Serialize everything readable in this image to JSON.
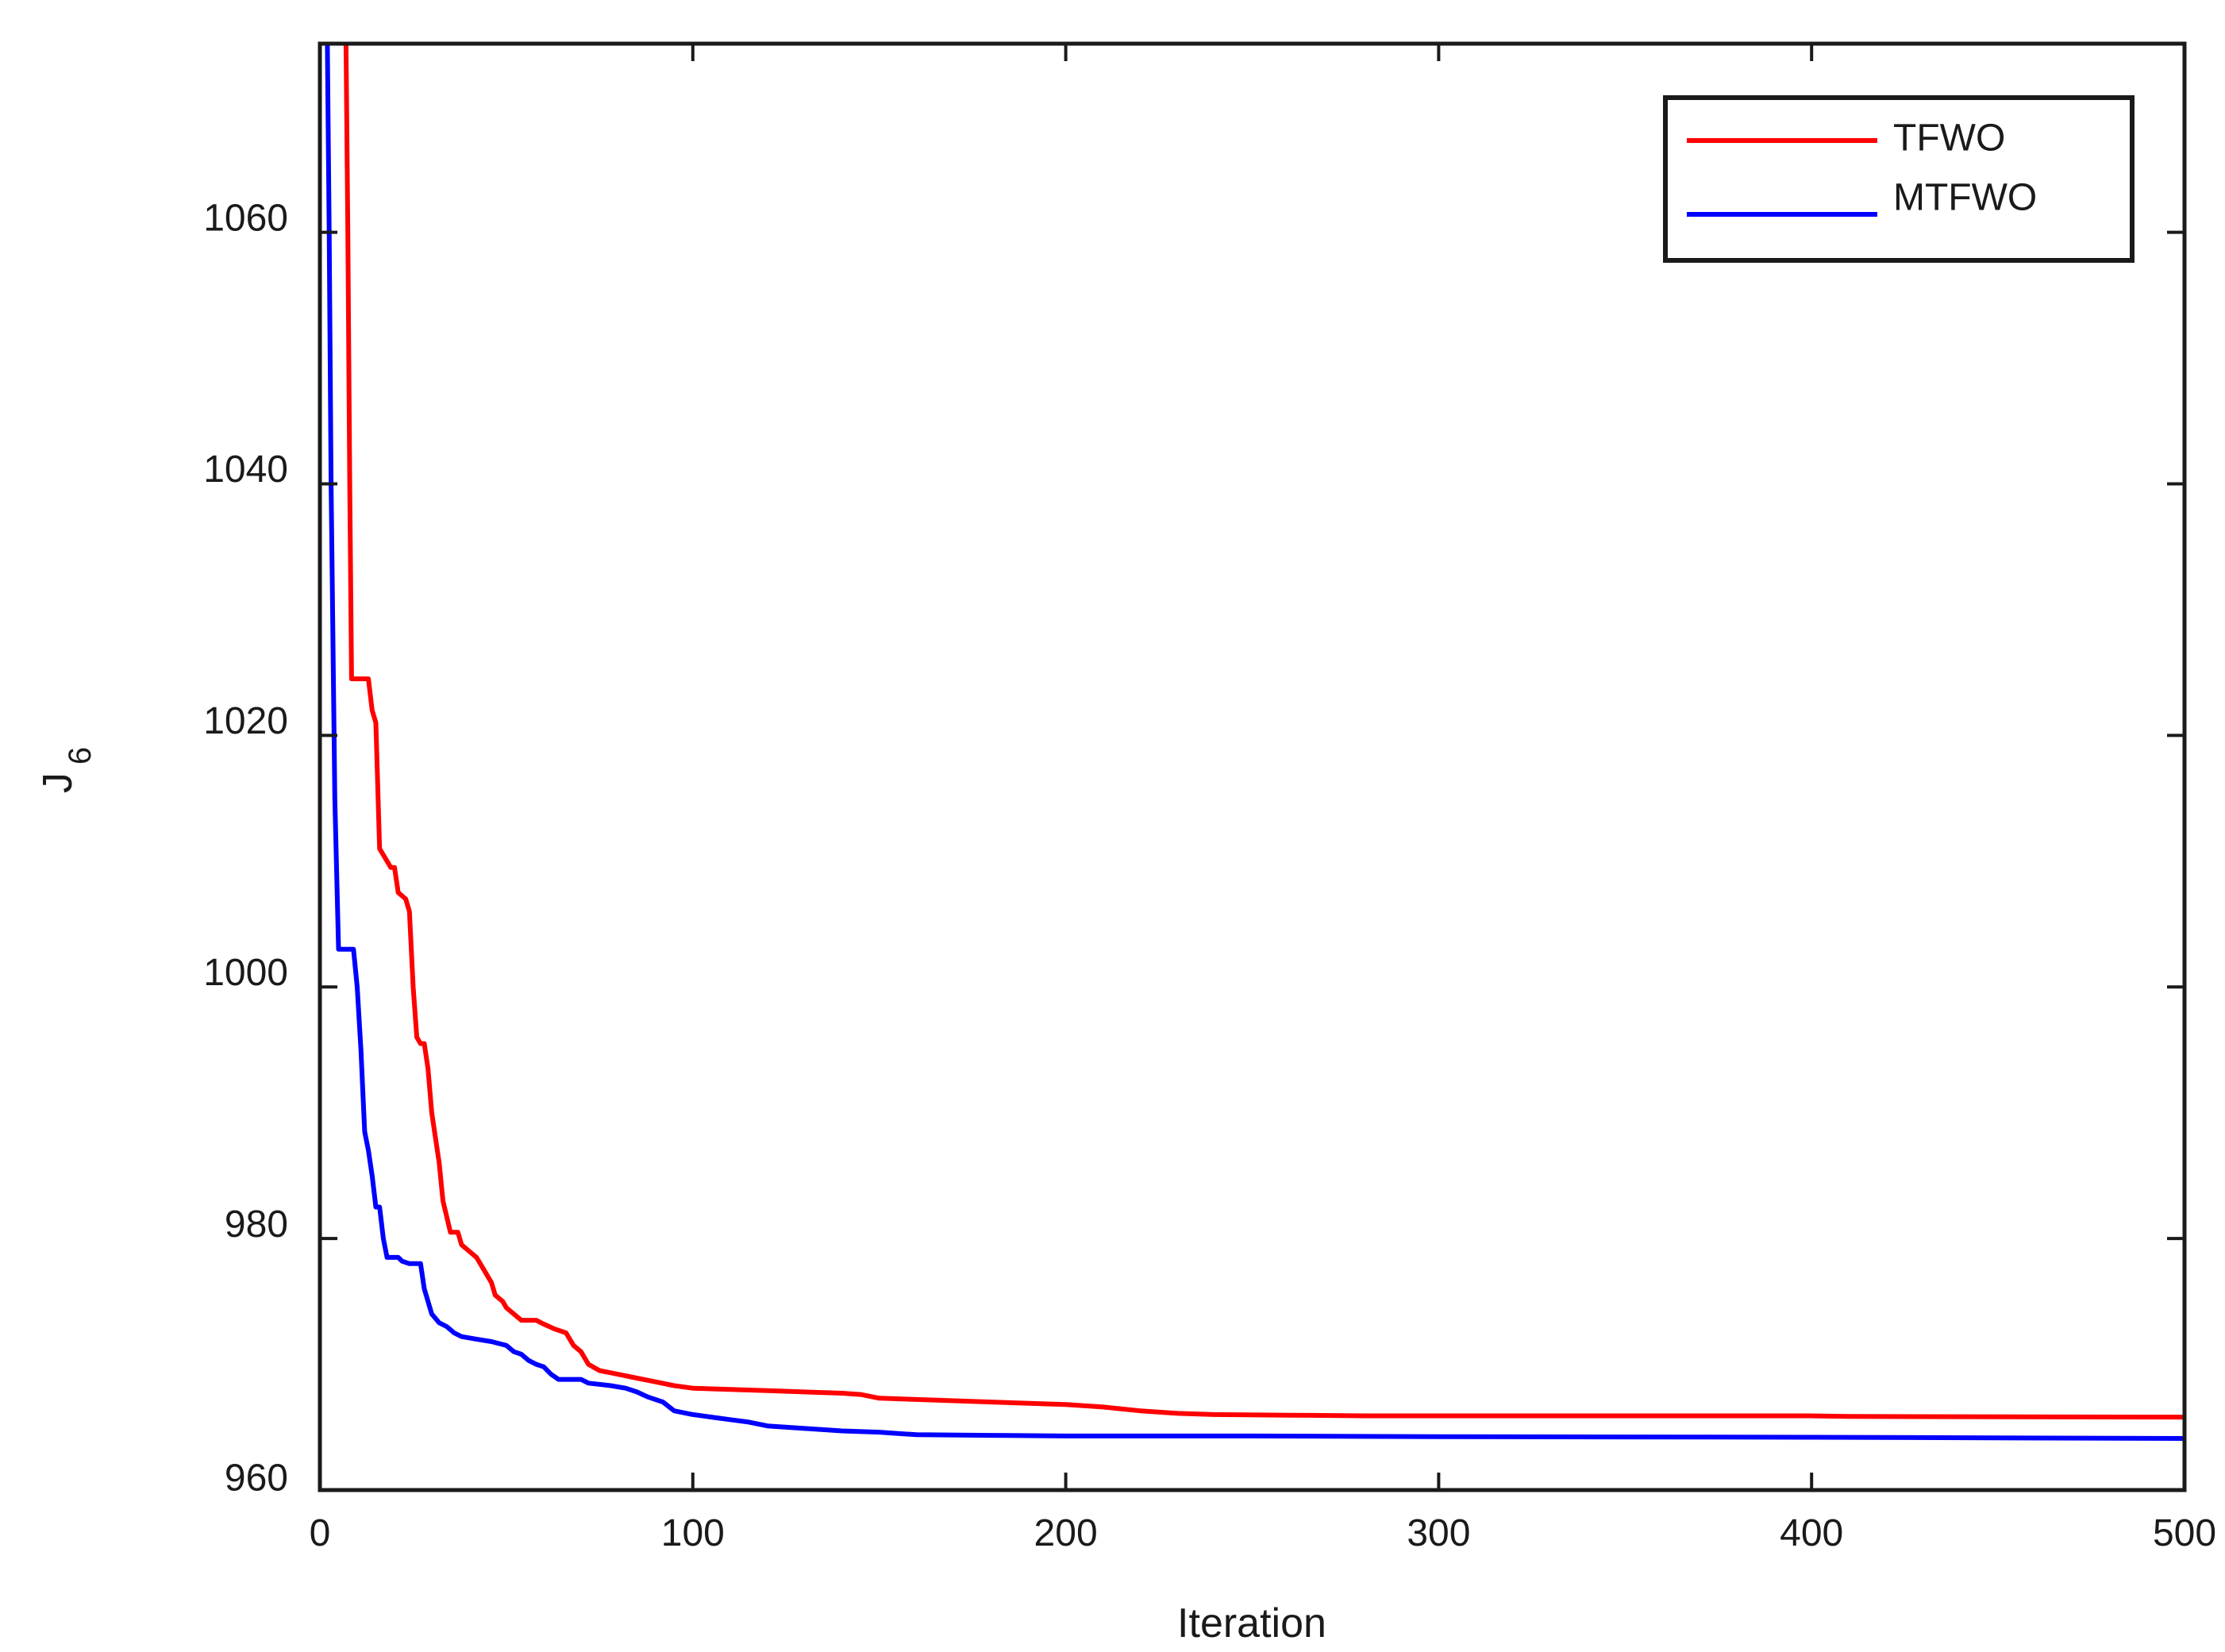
{
  "chart_data": {
    "type": "line",
    "xlabel": "Iteration",
    "ylabel": "J",
    "ylabel_subscript": "6",
    "xlim": [
      0,
      500
    ],
    "ylim": [
      960,
      1075
    ],
    "xticks": [
      0,
      100,
      200,
      300,
      400,
      500
    ],
    "xtick_labels": [
      "0",
      "100",
      "200",
      "300",
      "400",
      "500"
    ],
    "yticks": [
      960,
      980,
      1000,
      1020,
      1040,
      1060
    ],
    "ytick_labels": [
      "960",
      "980",
      "1000",
      "1020",
      "1040",
      "1060"
    ],
    "grid": false,
    "legend_position": "top-right",
    "series": [
      {
        "name": "TFWO",
        "color": "#ff0000",
        "points": [
          [
            7,
            1075
          ],
          [
            7.5,
            1060
          ],
          [
            8,
            1040
          ],
          [
            8.5,
            1024.5
          ],
          [
            13,
            1024.5
          ],
          [
            14,
            1022
          ],
          [
            15,
            1021
          ],
          [
            16,
            1011
          ],
          [
            18,
            1010
          ],
          [
            19,
            1009.5
          ],
          [
            20,
            1009.5
          ],
          [
            21,
            1007.5
          ],
          [
            23,
            1007
          ],
          [
            24,
            1006
          ],
          [
            25,
            1000
          ],
          [
            26,
            996
          ],
          [
            27,
            995.5
          ],
          [
            28,
            995.5
          ],
          [
            29,
            993.5
          ],
          [
            30,
            990
          ],
          [
            32,
            986
          ],
          [
            33,
            983
          ],
          [
            35,
            980.5
          ],
          [
            37,
            980.5
          ],
          [
            38,
            979.5
          ],
          [
            40,
            979
          ],
          [
            42,
            978.5
          ],
          [
            44,
            977.5
          ],
          [
            46,
            976.5
          ],
          [
            47,
            975.5
          ],
          [
            49,
            975
          ],
          [
            50,
            974.5
          ],
          [
            52,
            974
          ],
          [
            54,
            973.5
          ],
          [
            58,
            973.5
          ],
          [
            60,
            973.2
          ],
          [
            63,
            972.8
          ],
          [
            66,
            972.5
          ],
          [
            68,
            971.5
          ],
          [
            70,
            971
          ],
          [
            72,
            970
          ],
          [
            75,
            969.5
          ],
          [
            80,
            969.2
          ],
          [
            85,
            968.9
          ],
          [
            90,
            968.6
          ],
          [
            95,
            968.3
          ],
          [
            100,
            968.1
          ],
          [
            110,
            968
          ],
          [
            120,
            967.9
          ],
          [
            130,
            967.8
          ],
          [
            140,
            967.7
          ],
          [
            145,
            967.6
          ],
          [
            150,
            967.3
          ],
          [
            160,
            967.2
          ],
          [
            180,
            967
          ],
          [
            200,
            966.8
          ],
          [
            210,
            966.6
          ],
          [
            220,
            966.3
          ],
          [
            230,
            966.1
          ],
          [
            240,
            966
          ],
          [
            260,
            965.95
          ],
          [
            280,
            965.9
          ],
          [
            400,
            965.9
          ],
          [
            410,
            965.85
          ],
          [
            500,
            965.8
          ]
        ]
      },
      {
        "name": "MTFWO",
        "color": "#0000ff",
        "points": [
          [
            2,
            1075
          ],
          [
            2.5,
            1060
          ],
          [
            3,
            1040
          ],
          [
            4,
            1015
          ],
          [
            5,
            1003
          ],
          [
            9,
            1003
          ],
          [
            10,
            1000
          ],
          [
            11,
            995
          ],
          [
            12,
            988.5
          ],
          [
            13,
            987
          ],
          [
            14,
            985
          ],
          [
            15,
            982.5
          ],
          [
            16,
            982.5
          ],
          [
            17,
            980
          ],
          [
            18,
            978.5
          ],
          [
            21,
            978.5
          ],
          [
            22,
            978.2
          ],
          [
            24,
            978
          ],
          [
            27,
            978
          ],
          [
            28,
            976
          ],
          [
            30,
            974
          ],
          [
            32,
            973.3
          ],
          [
            34,
            973
          ],
          [
            36,
            972.5
          ],
          [
            38,
            972.2
          ],
          [
            42,
            972
          ],
          [
            46,
            971.8
          ],
          [
            50,
            971.5
          ],
          [
            52,
            971
          ],
          [
            54,
            970.8
          ],
          [
            56,
            970.3
          ],
          [
            58,
            970
          ],
          [
            60,
            969.8
          ],
          [
            62,
            969.2
          ],
          [
            64,
            968.8
          ],
          [
            70,
            968.8
          ],
          [
            72,
            968.5
          ],
          [
            78,
            968.3
          ],
          [
            82,
            968.1
          ],
          [
            85,
            967.8
          ],
          [
            88,
            967.4
          ],
          [
            92,
            967
          ],
          [
            95,
            966.3
          ],
          [
            100,
            966
          ],
          [
            105,
            965.8
          ],
          [
            110,
            965.6
          ],
          [
            115,
            965.4
          ],
          [
            120,
            965.1
          ],
          [
            130,
            964.9
          ],
          [
            140,
            964.7
          ],
          [
            150,
            964.6
          ],
          [
            160,
            964.4
          ],
          [
            180,
            964.35
          ],
          [
            200,
            964.3
          ],
          [
            250,
            964.3
          ],
          [
            300,
            964.25
          ],
          [
            400,
            964.2
          ],
          [
            500,
            964.1
          ]
        ]
      }
    ]
  }
}
